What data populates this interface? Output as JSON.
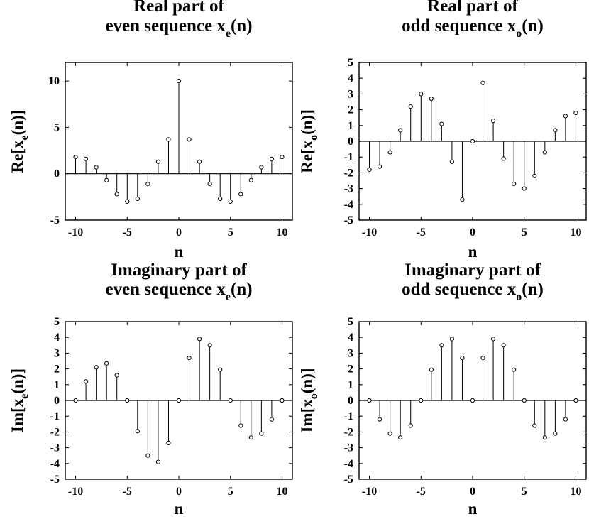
{
  "chart_data": [
    {
      "type": "stem",
      "title_lines": [
        "Real part of",
        "even sequence x"
      ],
      "title_subscript": "e",
      "title_suffix": "(n)",
      "xlabel": "n",
      "ylabel_prefix": "Re[x",
      "ylabel_subscript": "e",
      "ylabel_suffix": "(n)]",
      "xlim": [
        -11,
        11
      ],
      "ylim": [
        -5,
        12
      ],
      "xticks": [
        -10,
        -5,
        0,
        5,
        10
      ],
      "yticks": [
        -5,
        0,
        5,
        10
      ],
      "x": [
        -10,
        -9,
        -8,
        -7,
        -6,
        -5,
        -4,
        -3,
        -2,
        -1,
        0,
        1,
        2,
        3,
        4,
        5,
        6,
        7,
        8,
        9,
        10
      ],
      "values": [
        1.8,
        1.6,
        0.7,
        -0.7,
        -2.2,
        -3.0,
        -2.7,
        -1.1,
        1.3,
        3.7,
        10,
        3.7,
        1.3,
        -1.1,
        -2.7,
        -3.0,
        -2.2,
        -0.7,
        0.7,
        1.6,
        1.8
      ]
    },
    {
      "type": "stem",
      "title_lines": [
        "Real part of",
        "odd sequence x"
      ],
      "title_subscript": "o",
      "title_suffix": "(n)",
      "xlabel": "n",
      "ylabel_prefix": "Re[x",
      "ylabel_subscript": "o",
      "ylabel_suffix": "(n)]",
      "xlim": [
        -11,
        11
      ],
      "ylim": [
        -5,
        5
      ],
      "xticks": [
        -10,
        -5,
        0,
        5,
        10
      ],
      "yticks": [
        -5,
        -4,
        -3,
        -2,
        -1,
        0,
        1,
        2,
        3,
        4,
        5
      ],
      "x": [
        -10,
        -9,
        -8,
        -7,
        -6,
        -5,
        -4,
        -3,
        -2,
        -1,
        0,
        1,
        2,
        3,
        4,
        5,
        6,
        7,
        8,
        9,
        10
      ],
      "values": [
        -1.8,
        -1.6,
        -0.7,
        0.7,
        2.2,
        3.0,
        2.7,
        1.1,
        -1.3,
        -3.7,
        0,
        3.7,
        1.3,
        -1.1,
        -2.7,
        -3.0,
        -2.2,
        -0.7,
        0.7,
        1.6,
        1.8
      ]
    },
    {
      "type": "stem",
      "title_lines": [
        "Imaginary part of",
        "even sequence x"
      ],
      "title_subscript": "e",
      "title_suffix": "(n)",
      "xlabel": "n",
      "ylabel_prefix": "Im[x",
      "ylabel_subscript": "e",
      "ylabel_suffix": "(n)]",
      "xlim": [
        -11,
        11
      ],
      "ylim": [
        -5,
        5
      ],
      "xticks": [
        -10,
        -5,
        0,
        5,
        10
      ],
      "yticks": [
        -5,
        -4,
        -3,
        -2,
        -1,
        0,
        1,
        2,
        3,
        4,
        5
      ],
      "x": [
        -10,
        -9,
        -8,
        -7,
        -6,
        -5,
        -4,
        -3,
        -2,
        -1,
        0,
        1,
        2,
        3,
        4,
        5,
        6,
        7,
        8,
        9,
        10
      ],
      "values": [
        0,
        1.2,
        2.1,
        2.35,
        1.6,
        0,
        -1.95,
        -3.5,
        -3.9,
        -2.7,
        0,
        2.7,
        3.9,
        3.5,
        1.95,
        0,
        -1.6,
        -2.35,
        -2.1,
        -1.2,
        0
      ]
    },
    {
      "type": "stem",
      "title_lines": [
        "Imaginary part of",
        "odd sequence x"
      ],
      "title_subscript": "o",
      "title_suffix": "(n)",
      "xlabel": "n",
      "ylabel_prefix": "Im[x",
      "ylabel_subscript": "o",
      "ylabel_suffix": "(n)]",
      "xlim": [
        -11,
        11
      ],
      "ylim": [
        -5,
        5
      ],
      "xticks": [
        -10,
        -5,
        0,
        5,
        10
      ],
      "yticks": [
        -5,
        -4,
        -3,
        -2,
        -1,
        0,
        1,
        2,
        3,
        4,
        5
      ],
      "x": [
        -10,
        -9,
        -8,
        -7,
        -6,
        -5,
        -4,
        -3,
        -2,
        -1,
        0,
        1,
        2,
        3,
        4,
        5,
        6,
        7,
        8,
        9,
        10
      ],
      "values": [
        0,
        -1.2,
        -2.1,
        -2.35,
        -1.6,
        0,
        1.95,
        3.5,
        3.9,
        2.7,
        0,
        2.7,
        3.9,
        3.5,
        1.95,
        0,
        -1.6,
        -2.35,
        -2.1,
        -1.2,
        0
      ]
    }
  ],
  "style": {
    "line_color": "#000000",
    "background": "#ffffff"
  }
}
